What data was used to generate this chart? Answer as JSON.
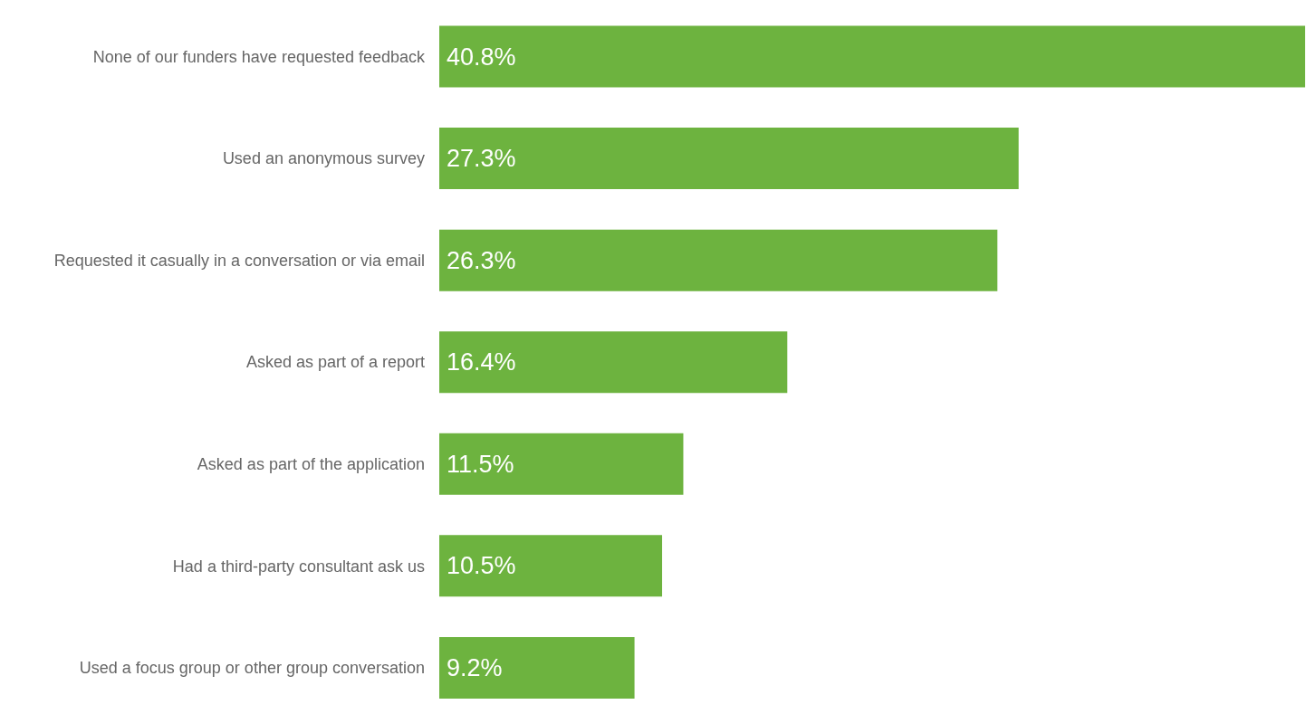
{
  "chart_data": {
    "type": "bar",
    "orientation": "horizontal",
    "categories": [
      "None of our funders have requested feedback",
      "Used an anonymous survey",
      "Requested it casually in a conversation or via email",
      "Asked as part of a report",
      "Asked as part of the application",
      "Had a third-party consultant ask us",
      "Used a focus group or other group conversation"
    ],
    "values": [
      40.8,
      27.3,
      26.3,
      16.4,
      11.5,
      10.5,
      9.2
    ],
    "value_labels": [
      "40.8%",
      "27.3%",
      "26.3%",
      "16.4%",
      "11.5%",
      "10.5%",
      "9.2%"
    ],
    "color": "#6db33f",
    "grid": false,
    "legend": false
  }
}
